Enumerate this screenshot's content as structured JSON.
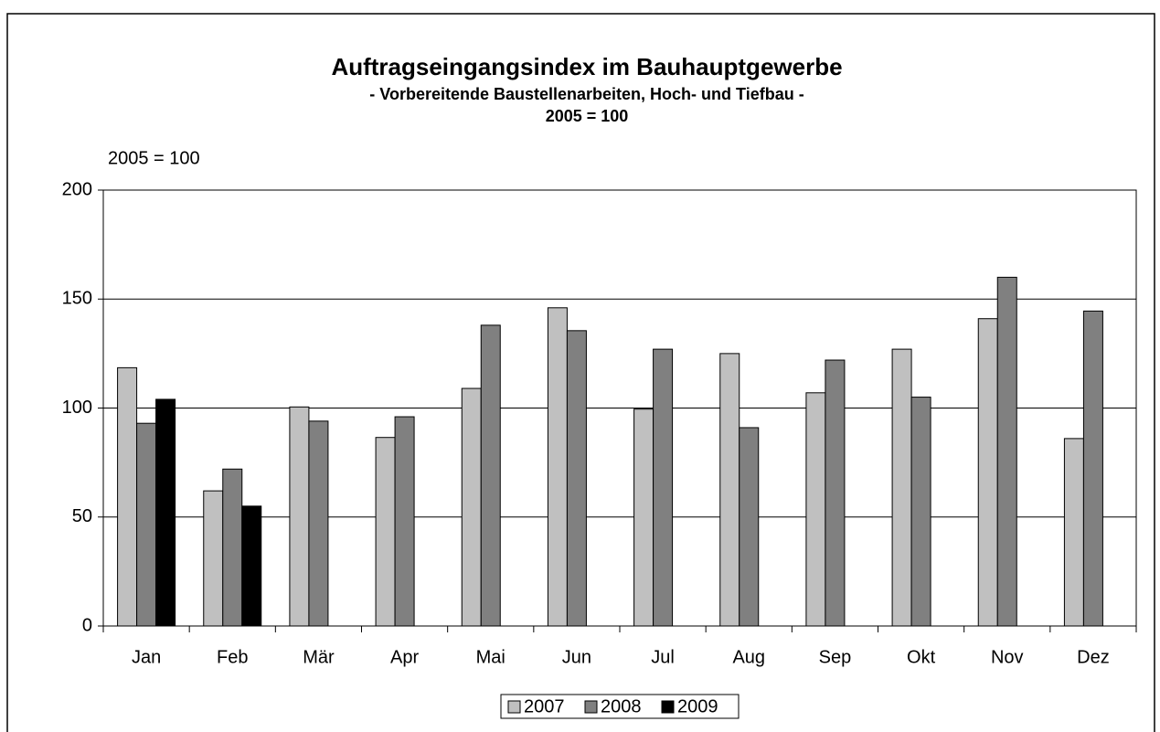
{
  "chart_data": {
    "type": "bar",
    "title": "Auftragseingangsindex im Bauhauptgewerbe",
    "subtitle": [
      "- Vorbereitende Baustellenarbeiten, Hoch- und Tiefbau -",
      "2005 = 100"
    ],
    "ylabel": "2005 = 100",
    "categories": [
      "Jan",
      "Feb",
      "Mär",
      "Apr",
      "Mai",
      "Jun",
      "Jul",
      "Aug",
      "Sep",
      "Okt",
      "Nov",
      "Dez"
    ],
    "series": [
      {
        "name": "2007",
        "color": "#c0c0c0",
        "values": [
          118.5,
          62,
          100.5,
          86.5,
          109,
          146,
          99.5,
          125,
          107,
          127,
          141,
          86
        ]
      },
      {
        "name": "2008",
        "color": "#808080",
        "values": [
          93,
          72,
          94,
          96,
          138,
          135.5,
          127,
          91,
          122,
          105,
          160,
          144.5
        ]
      },
      {
        "name": "2009",
        "color": "#000000",
        "values": [
          104,
          55,
          null,
          null,
          null,
          null,
          null,
          null,
          null,
          null,
          null,
          null
        ]
      }
    ],
    "ylim": [
      0,
      200
    ],
    "yticks": [
      0,
      50,
      100,
      150,
      200
    ],
    "grid": true,
    "legend": "bottom"
  }
}
